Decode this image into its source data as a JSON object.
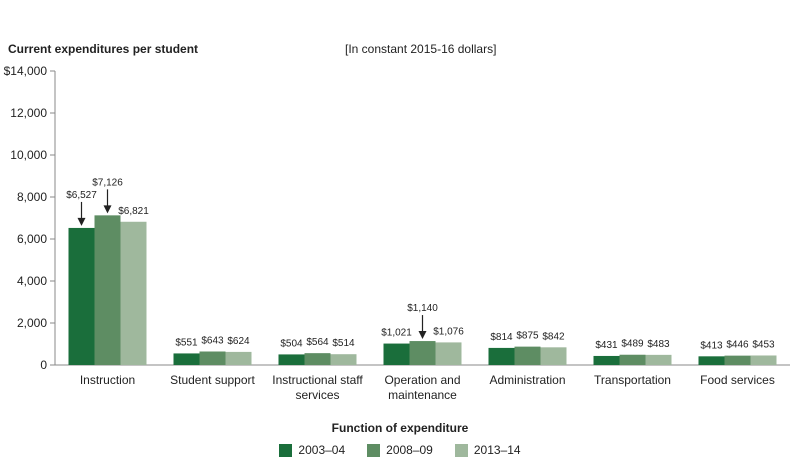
{
  "chart_data": {
    "type": "bar",
    "ylabel": "Current expenditures per student",
    "note": "[In constant 2015-16 dollars]",
    "xlabel": "Function of expenditure",
    "ylim": [
      0,
      14000
    ],
    "yticks": [
      0,
      2000,
      4000,
      6000,
      8000,
      10000,
      12000,
      14000
    ],
    "ytick_labels": [
      "0",
      "2,000",
      "4,000",
      "6,000",
      "8,000",
      "10,000",
      "12,000",
      "$14,000"
    ],
    "categories": [
      [
        "Instruction"
      ],
      [
        "Student support"
      ],
      [
        "Instructional staff",
        "services"
      ],
      [
        "Operation and",
        "maintenance"
      ],
      [
        "Administration"
      ],
      [
        "Transportation"
      ],
      [
        "Food services"
      ]
    ],
    "series": [
      {
        "name": "2003–04",
        "color": "#1a6e3b",
        "values": [
          6527,
          551,
          504,
          1021,
          814,
          431,
          413
        ],
        "labels": [
          "$6,527",
          "$551",
          "$504",
          "$1,021",
          "$814",
          "$431",
          "$413"
        ]
      },
      {
        "name": "2008–09",
        "color": "#5e8d63",
        "values": [
          7126,
          643,
          564,
          1140,
          875,
          489,
          446
        ],
        "labels": [
          "$7,126",
          "$643",
          "$564",
          "$1,140",
          "$875",
          "$489",
          "$446"
        ]
      },
      {
        "name": "2013–14",
        "color": "#9fb89d",
        "values": [
          6821,
          624,
          514,
          1076,
          842,
          483,
          453
        ],
        "labels": [
          "$6,821",
          "$624",
          "$514",
          "$1,076",
          "$842",
          "$483",
          "$453"
        ]
      }
    ],
    "legend_position": "bottom"
  }
}
